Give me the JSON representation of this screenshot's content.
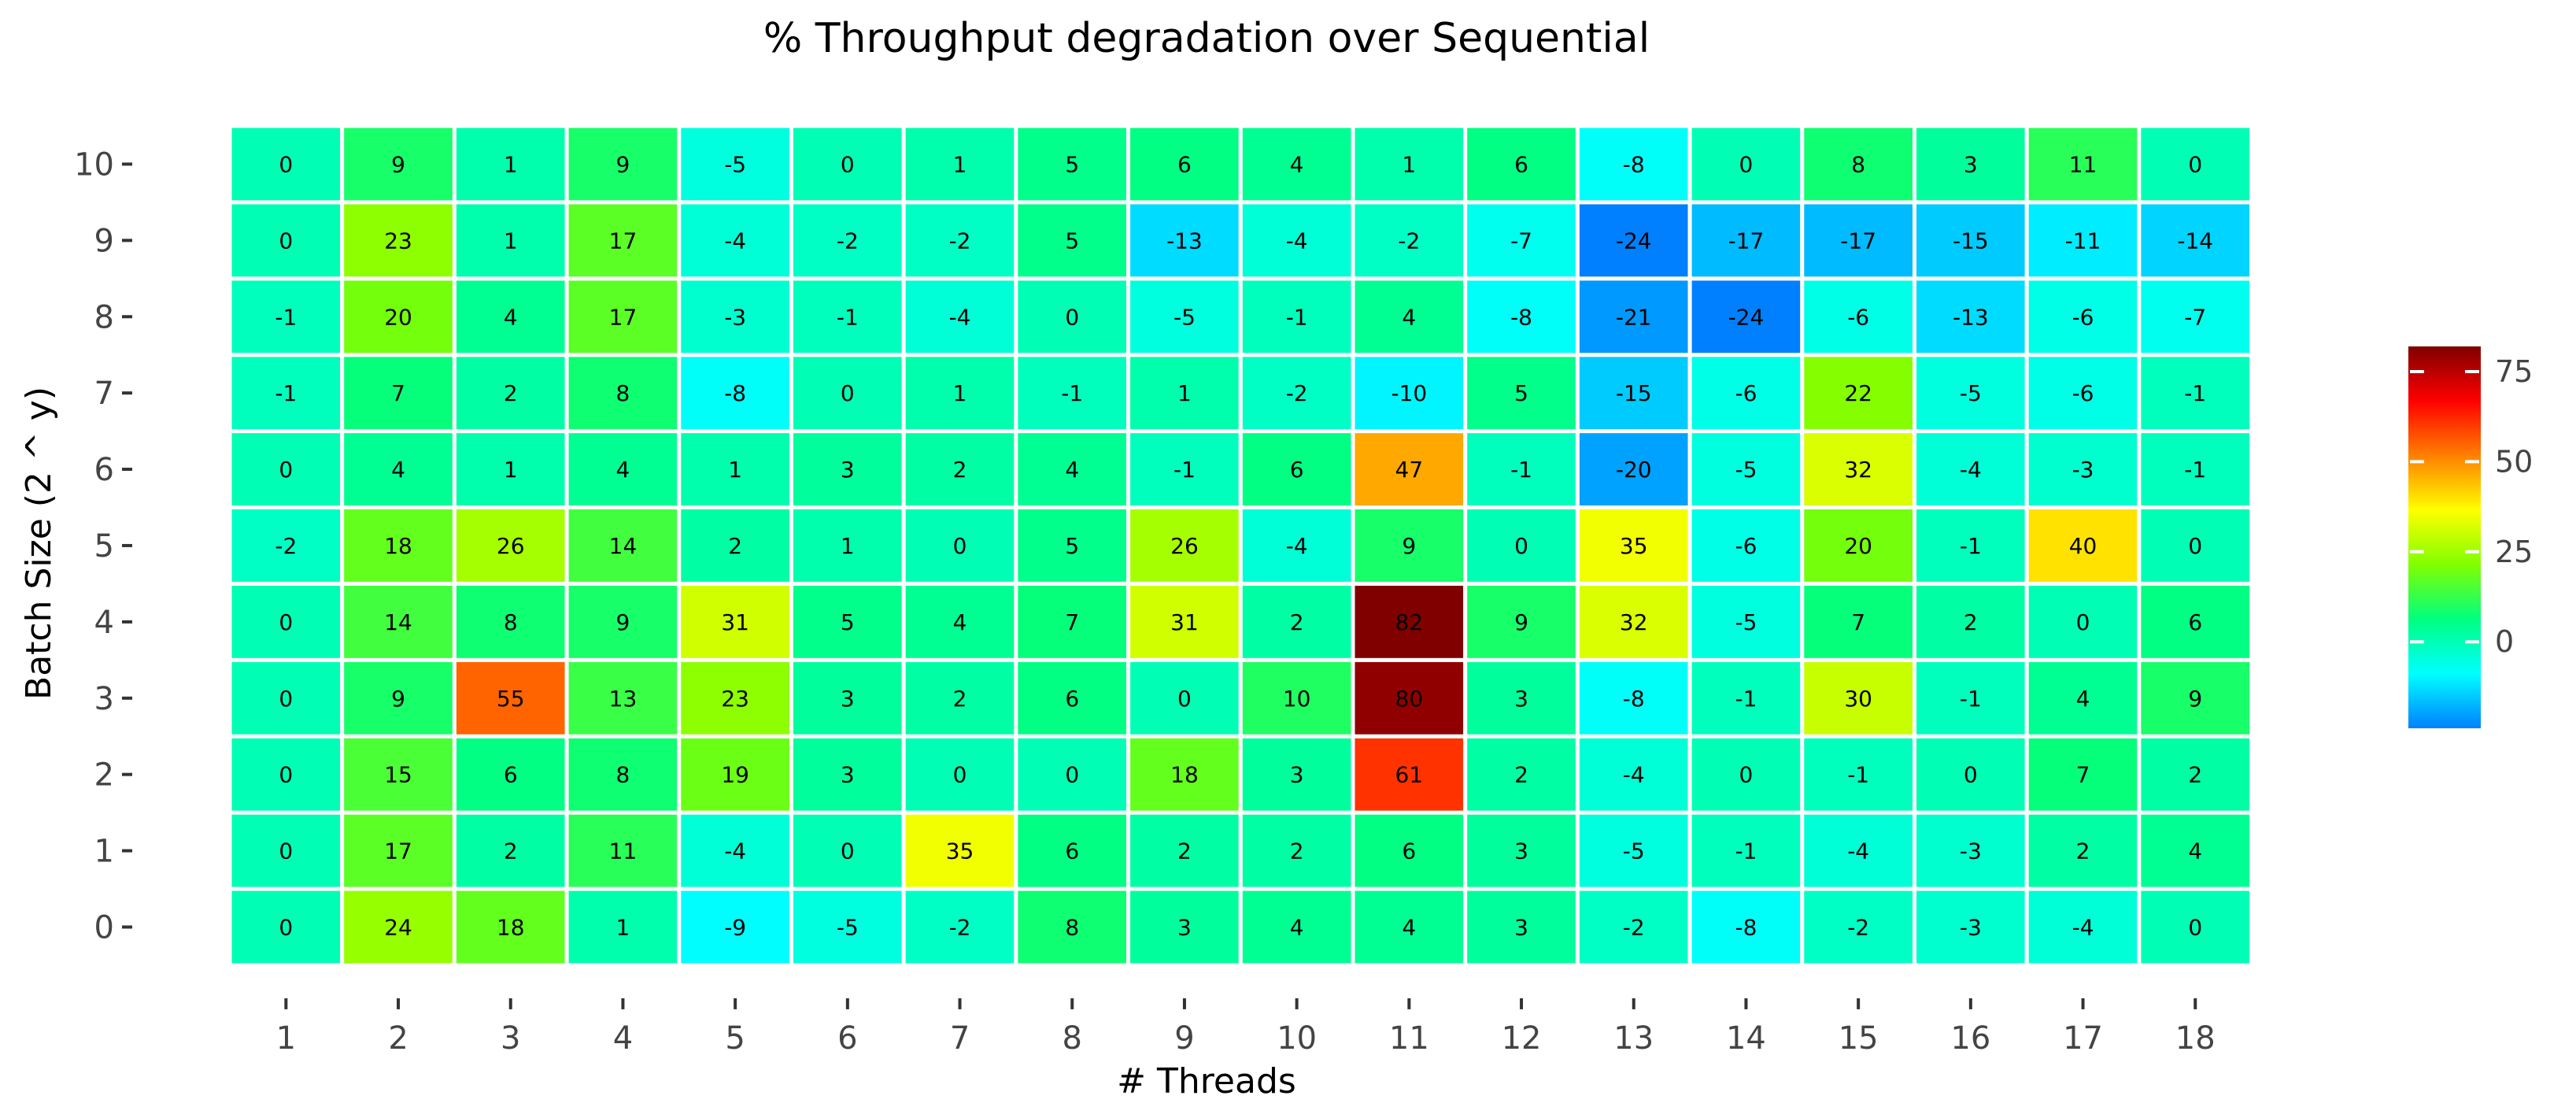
{
  "chart_data": {
    "type": "heatmap",
    "title": "% Throughput degradation over Sequential",
    "xlabel": "# Threads",
    "ylabel": "Batch Size (2 ^ y)",
    "x": [
      "1",
      "2",
      "3",
      "4",
      "5",
      "6",
      "7",
      "8",
      "9",
      "10",
      "11",
      "12",
      "13",
      "14",
      "15",
      "16",
      "17",
      "18"
    ],
    "y": [
      "0",
      "1",
      "2",
      "3",
      "4",
      "5",
      "6",
      "7",
      "8",
      "9",
      "10"
    ],
    "values": [
      [
        0,
        24,
        18,
        1,
        -9,
        -5,
        -2,
        8,
        3,
        4,
        4,
        3,
        -2,
        -8,
        -2,
        -3,
        -4,
        0
      ],
      [
        0,
        17,
        2,
        11,
        -4,
        0,
        35,
        6,
        2,
        2,
        6,
        3,
        -5,
        -1,
        -4,
        -3,
        2,
        4
      ],
      [
        0,
        15,
        6,
        8,
        19,
        3,
        0,
        0,
        18,
        3,
        61,
        2,
        -4,
        0,
        -1,
        0,
        7,
        2
      ],
      [
        0,
        9,
        55,
        13,
        23,
        3,
        2,
        6,
        0,
        10,
        80,
        3,
        -8,
        -1,
        30,
        -1,
        4,
        9
      ],
      [
        0,
        14,
        8,
        9,
        31,
        5,
        4,
        7,
        31,
        2,
        82,
        9,
        32,
        -5,
        7,
        2,
        0,
        6
      ],
      [
        -2,
        18,
        26,
        14,
        2,
        1,
        0,
        5,
        26,
        -4,
        9,
        0,
        35,
        -6,
        20,
        -1,
        40,
        0
      ],
      [
        0,
        4,
        1,
        4,
        1,
        3,
        2,
        4,
        -1,
        6,
        47,
        -1,
        -20,
        -5,
        32,
        -4,
        -3,
        -1
      ],
      [
        -1,
        7,
        2,
        8,
        -8,
        0,
        1,
        -1,
        1,
        -2,
        -10,
        5,
        -15,
        -6,
        22,
        -5,
        -6,
        -1
      ],
      [
        -1,
        20,
        4,
        17,
        -3,
        -1,
        -4,
        0,
        -5,
        -1,
        4,
        -8,
        -21,
        -24,
        -6,
        -13,
        -6,
        -7
      ],
      [
        0,
        23,
        1,
        17,
        -4,
        -2,
        -2,
        5,
        -13,
        -4,
        -2,
        -7,
        -24,
        -17,
        -17,
        -15,
        -11,
        -14
      ],
      [
        0,
        9,
        1,
        9,
        -5,
        0,
        1,
        5,
        6,
        4,
        1,
        6,
        -8,
        0,
        8,
        3,
        11,
        0
      ]
    ],
    "colorbar": {
      "range": [
        -24,
        82
      ],
      "ticks": [
        0,
        25,
        50,
        75
      ],
      "colors": [
        "#0080ff",
        "#00ffff",
        "#00ff80",
        "#80ff00",
        "#ffff00",
        "#ff8000",
        "#ff0000",
        "#800000"
      ]
    },
    "grid": false,
    "legend_position": "right"
  }
}
